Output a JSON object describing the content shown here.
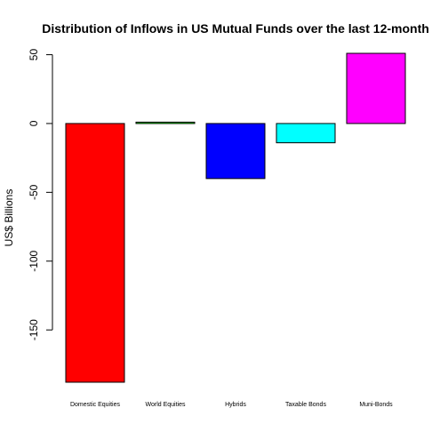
{
  "chart_data": {
    "type": "bar",
    "title": "Distribution of Inflows in US Mutual Funds  over the last 12-month",
    "xlabel": "",
    "ylabel": "US$ Billions",
    "categories": [
      "Domestic Equities",
      "World Equities",
      "Hybrids",
      "Taxable Bonds",
      "Muni-Bonds"
    ],
    "values": [
      -188,
      1,
      -40,
      -14,
      51
    ],
    "colors": [
      "#ff0000",
      "#00ff00",
      "#0000ff",
      "#00ffff",
      "#ff00ff"
    ],
    "yticks": [
      -150,
      -100,
      -50,
      0,
      50
    ],
    "ylim": [
      -188,
      51
    ],
    "grid": false,
    "legend": "none"
  }
}
